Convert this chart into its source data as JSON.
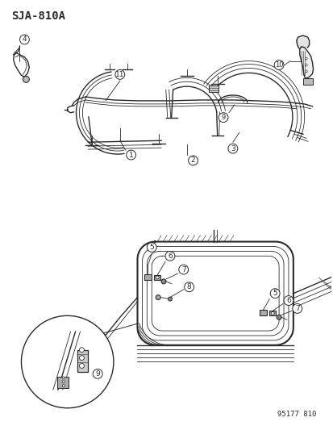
{
  "title_code": "SJA-810A",
  "part_number": "95177 810",
  "bg_color": "#ffffff",
  "line_color": "#2a2a2a",
  "fig_width": 4.14,
  "fig_height": 5.33,
  "dpi": 100
}
